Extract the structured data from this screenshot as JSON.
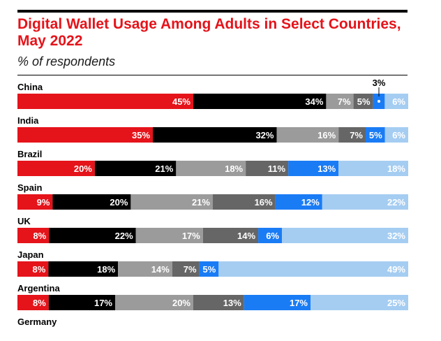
{
  "chart_data": {
    "type": "bar",
    "stacked": true,
    "orientation": "horizontal",
    "title": "Digital Wallet Usage Among Adults in Select Countries, May 2022",
    "subtitle": "% of respondents",
    "unit": "%",
    "categories": [
      "China",
      "India",
      "Brazil",
      "Spain",
      "UK",
      "Japan",
      "Argentina",
      "Germany"
    ],
    "series_colors": [
      "#e5131a",
      "#000000",
      "#9b9b9b",
      "#666666",
      "#1a7cf5",
      "#a5cdf2"
    ],
    "rows": [
      {
        "country": "China",
        "values": [
          45,
          34,
          7,
          5,
          3,
          6
        ],
        "labels": [
          "45%",
          "34%",
          "7%",
          "5%",
          "",
          "6%"
        ],
        "callout": "3%"
      },
      {
        "country": "India",
        "values": [
          35,
          32,
          16,
          7,
          5,
          6
        ],
        "labels": [
          "35%",
          "32%",
          "16%",
          "7%",
          "5%",
          "6%"
        ]
      },
      {
        "country": "Brazil",
        "values": [
          20,
          21,
          18,
          11,
          13,
          18
        ],
        "labels": [
          "20%",
          "21%",
          "18%",
          "11%",
          "13%",
          "18%"
        ]
      },
      {
        "country": "Spain",
        "values": [
          9,
          20,
          21,
          16,
          12,
          22
        ],
        "labels": [
          "9%",
          "20%",
          "21%",
          "16%",
          "12%",
          "22%"
        ]
      },
      {
        "country": "UK",
        "values": [
          8,
          22,
          17,
          14,
          6,
          32
        ],
        "labels": [
          "8%",
          "22%",
          "17%",
          "14%",
          "6%",
          "32%"
        ]
      },
      {
        "country": "Japan",
        "values": [
          8,
          18,
          14,
          7,
          5,
          49
        ],
        "labels": [
          "8%",
          "18%",
          "14%",
          "7%",
          "5%",
          "49%"
        ]
      },
      {
        "country": "Argentina",
        "values": [
          8,
          17,
          20,
          13,
          17,
          25
        ],
        "labels": [
          "8%",
          "17%",
          "20%",
          "13%",
          "17%",
          "25%"
        ]
      },
      {
        "country": "Germany",
        "values": [],
        "labels": []
      }
    ]
  }
}
